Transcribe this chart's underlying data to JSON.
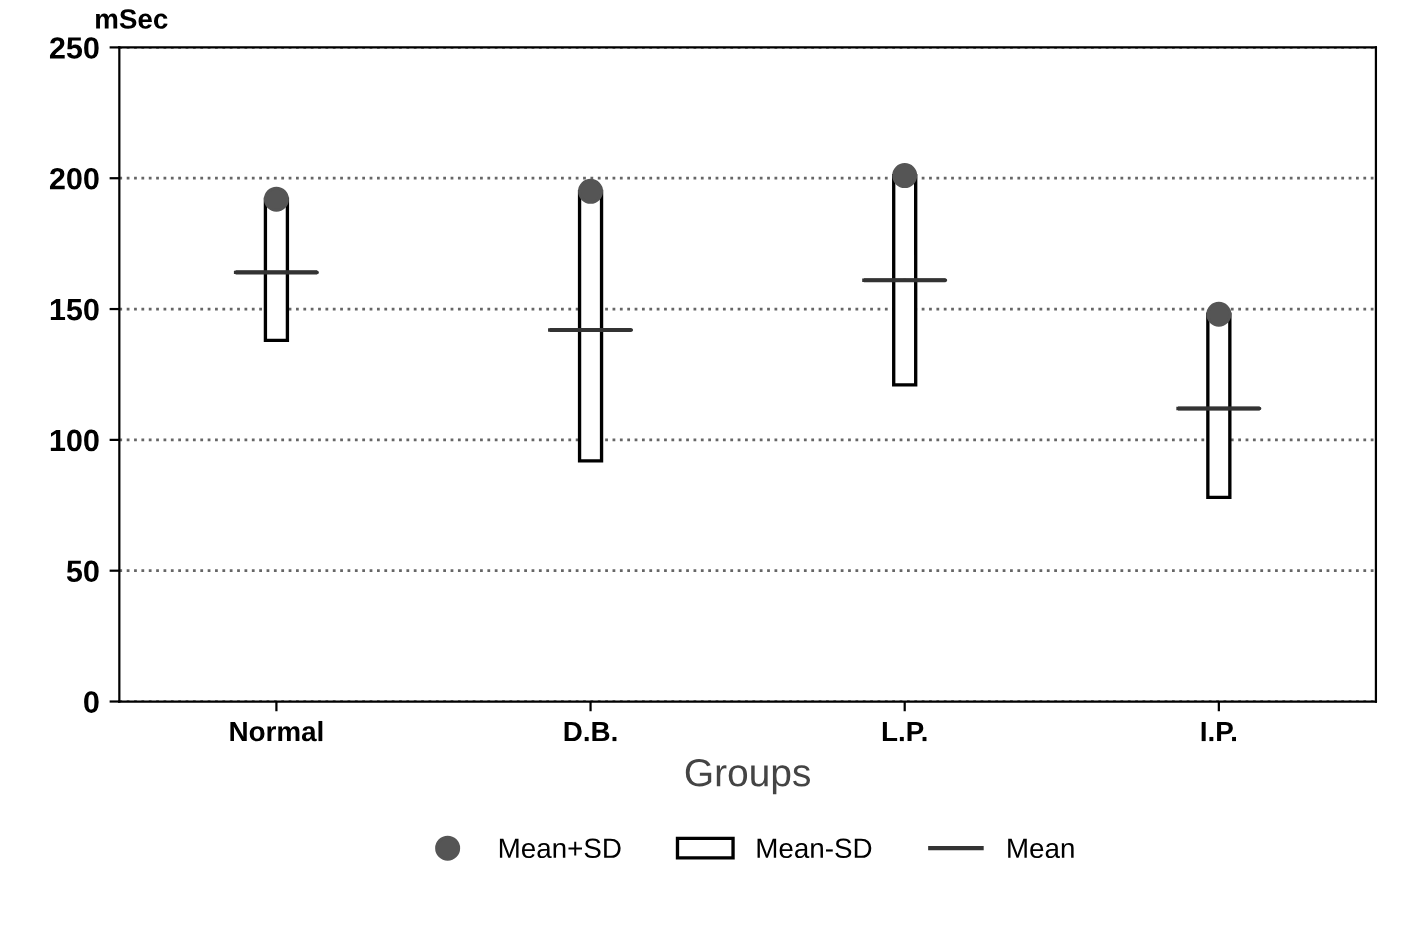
{
  "chart_data": {
    "type": "bar",
    "xlabel": "Groups",
    "ylabel": "mSec",
    "categories": [
      "Normal",
      "D.B.",
      "L.P.",
      "I.P."
    ],
    "ylim": [
      0,
      250
    ],
    "yticks": [
      0,
      50,
      100,
      150,
      200,
      250
    ],
    "grid": "y",
    "line_style": "dotted",
    "legend": "bottom",
    "series": [
      {
        "name": "Mean+SD",
        "type": "scatter",
        "marker": "circle",
        "color": "#555555",
        "values": [
          192,
          195,
          201,
          148
        ]
      },
      {
        "name": "Mean-SD",
        "type": "bar",
        "color": "#ffffff",
        "base": [
          138,
          92,
          121,
          78
        ],
        "values": [
          54,
          103,
          80,
          70
        ]
      },
      {
        "name": "Mean",
        "type": "box",
        "color": "#333333",
        "boxes": [
          {
            "low": 164,
            "q1": 164,
            "median": 164,
            "q3": 164,
            "high": 164
          },
          {
            "low": 142,
            "q1": 142,
            "median": 142,
            "q3": 142,
            "high": 142
          },
          {
            "low": 161,
            "q1": 161,
            "median": 161,
            "q3": 161,
            "high": 161
          },
          {
            "low": 112,
            "q1": 112,
            "median": 112,
            "q3": 112,
            "high": 112
          }
        ]
      }
    ]
  }
}
